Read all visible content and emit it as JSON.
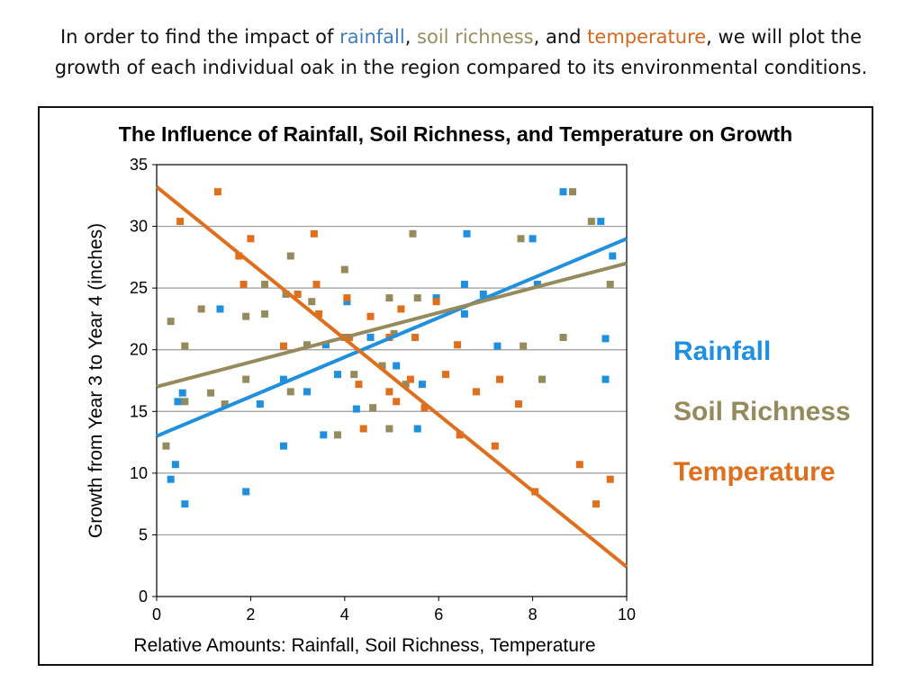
{
  "intro": {
    "part1": "In order to find the impact of ",
    "rainfall": "rainfall",
    "comma1": ", ",
    "soil": "soil richness",
    "and": ", and ",
    "temperature": "temperature",
    "part2": ", we will plot the",
    "line2": "growth of each individual oak in the region compared to its environmental conditions."
  },
  "colors": {
    "rainfall": "#1f8fe0",
    "soil": "#958a5c",
    "temperature": "#df6f1d",
    "grid": "#9a9a9a",
    "intro_rainfall": "#3f7fc1",
    "intro_soil": "#9a8d5e",
    "intro_temperature": "#d8661b"
  },
  "chart_data": {
    "type": "scatter",
    "title": "The Influence of Rainfall, Soil Richness, and Temperature on Growth",
    "xlabel": "Relative Amounts: Rainfall, Soil Richness, Temperature",
    "ylabel": "Growth from Year 3 to Year 4 (inches)",
    "xlim": [
      0,
      10
    ],
    "ylim": [
      0,
      35
    ],
    "x_ticks": [
      0,
      2,
      4,
      6,
      8,
      10
    ],
    "y_ticks": [
      0,
      5,
      10,
      15,
      20,
      25,
      30,
      35
    ],
    "grid": "horizontal",
    "legend_position": "right",
    "series": [
      {
        "name": "Rainfall",
        "color_key": "rainfall",
        "trend": [
          [
            0,
            13
          ],
          [
            10,
            29
          ]
        ],
        "points": [
          [
            0.3,
            9.5
          ],
          [
            0.4,
            10.7
          ],
          [
            0.45,
            15.8
          ],
          [
            0.55,
            16.5
          ],
          [
            0.6,
            7.5
          ],
          [
            1.35,
            23.3
          ],
          [
            1.9,
            8.5
          ],
          [
            2.2,
            15.6
          ],
          [
            2.7,
            17.6
          ],
          [
            2.7,
            12.2
          ],
          [
            3.2,
            16.6
          ],
          [
            3.55,
            13.1
          ],
          [
            3.6,
            20.4
          ],
          [
            3.85,
            18.0
          ],
          [
            4.05,
            23.9
          ],
          [
            4.25,
            15.2
          ],
          [
            4.55,
            21.0
          ],
          [
            5.1,
            18.7
          ],
          [
            5.55,
            13.6
          ],
          [
            5.65,
            17.2
          ],
          [
            5.95,
            24.2
          ],
          [
            6.55,
            22.9
          ],
          [
            6.55,
            25.3
          ],
          [
            6.6,
            29.4
          ],
          [
            6.95,
            24.5
          ],
          [
            7.25,
            20.3
          ],
          [
            8.0,
            29.0
          ],
          [
            8.1,
            25.3
          ],
          [
            8.65,
            32.8
          ],
          [
            9.45,
            30.4
          ],
          [
            9.55,
            20.9
          ],
          [
            9.55,
            17.6
          ],
          [
            9.7,
            27.6
          ]
        ]
      },
      {
        "name": "Soil Richness",
        "color_key": "soil",
        "trend": [
          [
            0,
            17
          ],
          [
            10,
            27
          ]
        ],
        "points": [
          [
            0.2,
            12.2
          ],
          [
            0.3,
            22.3
          ],
          [
            0.6,
            15.8
          ],
          [
            0.6,
            20.3
          ],
          [
            0.95,
            23.3
          ],
          [
            1.15,
            16.5
          ],
          [
            1.45,
            15.6
          ],
          [
            1.9,
            22.7
          ],
          [
            1.9,
            17.6
          ],
          [
            2.3,
            22.9
          ],
          [
            2.3,
            25.3
          ],
          [
            2.75,
            24.5
          ],
          [
            2.85,
            27.6
          ],
          [
            2.85,
            16.6
          ],
          [
            3.2,
            20.4
          ],
          [
            3.3,
            23.9
          ],
          [
            3.85,
            13.1
          ],
          [
            4.0,
            26.5
          ],
          [
            4.0,
            21.0
          ],
          [
            4.2,
            18.0
          ],
          [
            4.6,
            15.3
          ],
          [
            4.8,
            18.7
          ],
          [
            4.95,
            13.6
          ],
          [
            4.95,
            24.2
          ],
          [
            5.05,
            21.3
          ],
          [
            5.3,
            17.2
          ],
          [
            5.45,
            29.4
          ],
          [
            5.55,
            24.2
          ],
          [
            7.75,
            29.0
          ],
          [
            7.8,
            20.3
          ],
          [
            8.2,
            17.6
          ],
          [
            8.65,
            21.0
          ],
          [
            8.85,
            32.8
          ],
          [
            9.25,
            30.4
          ],
          [
            9.65,
            25.3
          ]
        ]
      },
      {
        "name": "Temperature",
        "color_key": "temperature",
        "trend": [
          [
            0,
            33.2
          ],
          [
            10,
            2.4
          ]
        ],
        "points": [
          [
            0.5,
            30.4
          ],
          [
            1.3,
            32.8
          ],
          [
            1.75,
            27.6
          ],
          [
            1.85,
            25.3
          ],
          [
            2.0,
            29.0
          ],
          [
            2.7,
            20.3
          ],
          [
            3.0,
            24.5
          ],
          [
            3.35,
            29.4
          ],
          [
            3.4,
            25.3
          ],
          [
            3.45,
            22.9
          ],
          [
            4.05,
            24.2
          ],
          [
            4.1,
            21.0
          ],
          [
            4.3,
            17.2
          ],
          [
            4.4,
            13.6
          ],
          [
            4.55,
            22.7
          ],
          [
            4.95,
            21.0
          ],
          [
            4.95,
            16.6
          ],
          [
            5.1,
            15.8
          ],
          [
            5.2,
            23.3
          ],
          [
            5.4,
            17.6
          ],
          [
            5.5,
            21.0
          ],
          [
            5.7,
            15.3
          ],
          [
            5.95,
            23.9
          ],
          [
            6.15,
            18.0
          ],
          [
            6.4,
            20.4
          ],
          [
            6.45,
            13.1
          ],
          [
            6.8,
            16.6
          ],
          [
            7.2,
            12.2
          ],
          [
            7.3,
            17.6
          ],
          [
            7.7,
            15.6
          ],
          [
            8.05,
            8.5
          ],
          [
            9.0,
            10.7
          ],
          [
            9.35,
            7.5
          ],
          [
            9.65,
            9.5
          ]
        ]
      }
    ]
  }
}
